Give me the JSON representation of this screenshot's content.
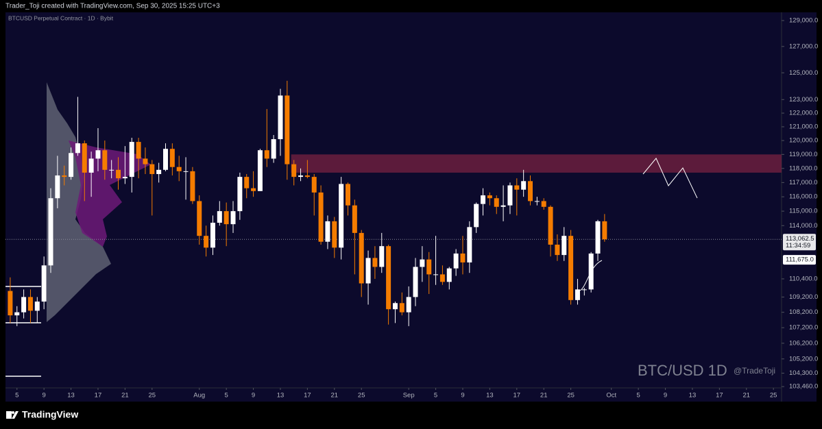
{
  "header": "Trader_Toji created with TradingView.com, Sep 30, 2025 15:25 UTC+3",
  "footer": "TradingView",
  "chart_data": {
    "type": "candlestick",
    "title": "BTCUSD Perpetual Contract · 1D · Bybit",
    "watermark": "BTC/USD 1D",
    "signature": "@TradeToji",
    "log_scale": true,
    "up_color": "#ffffff",
    "down_color": "#f57c00",
    "open": [
      109600,
      108000,
      108200,
      109200,
      108300,
      108900,
      111300,
      115900,
      117500,
      117400,
      119100,
      119800,
      117700,
      118700,
      119300,
      117900,
      117900,
      117300,
      117400,
      119900,
      118700,
      118300,
      117600,
      117900,
      119400,
      118100,
      117800,
      117800,
      115700,
      113300,
      112500,
      114200,
      115000,
      114100,
      115000,
      117400,
      116600,
      116400,
      119300,
      118700,
      120100,
      123300,
      118300,
      117400,
      117500,
      117400,
      116300,
      112900,
      114300,
      112500,
      116900,
      115400,
      113500,
      110100,
      111800,
      111200,
      112600,
      108400,
      108800,
      108200,
      109200,
      111200,
      111700,
      110700,
      110700,
      110200,
      111100,
      112100,
      111500,
      113900,
      115500,
      116100,
      115900,
      115300,
      115400,
      116800,
      116500,
      117100,
      115700,
      115700,
      115300,
      112700,
      112000,
      113300,
      109000,
      109700,
      109700,
      112100,
      114300
    ],
    "high": [
      110500,
      108600,
      109700,
      109700,
      109200,
      111900,
      116600,
      118900,
      118200,
      119500,
      123200,
      120000,
      119200,
      120900,
      120000,
      118600,
      118800,
      119600,
      120200,
      120200,
      119500,
      118600,
      118400,
      119800,
      119800,
      118900,
      118800,
      118100,
      116100,
      114000,
      114700,
      115700,
      115600,
      115700,
      117700,
      117600,
      117800,
      119400,
      122300,
      120400,
      123800,
      124400,
      118600,
      118000,
      118600,
      117600,
      116800,
      114700,
      114600,
      117400,
      117000,
      115800,
      113700,
      112300,
      112600,
      113500,
      112700,
      108900,
      109500,
      109900,
      111800,
      112600,
      112200,
      113300,
      111300,
      111200,
      112400,
      113300,
      114300,
      115600,
      116600,
      116300,
      116100,
      116800,
      117000,
      117300,
      117900,
      117500,
      116000,
      115900,
      115400,
      113400,
      113900,
      113700,
      110400,
      109800,
      112200,
      114400,
      114800
    ],
    "low": [
      107500,
      107300,
      107800,
      107500,
      107500,
      108400,
      110800,
      115200,
      116800,
      117200,
      118900,
      115700,
      116000,
      117800,
      117200,
      117300,
      116500,
      116900,
      116300,
      117300,
      117600,
      114700,
      117000,
      117800,
      117500,
      117100,
      115800,
      115500,
      112700,
      111900,
      112000,
      114000,
      112600,
      113500,
      114400,
      115900,
      116000,
      116400,
      118100,
      118400,
      118900,
      117200,
      116800,
      117100,
      117300,
      114700,
      112700,
      112400,
      111800,
      111700,
      114700,
      110700,
      109200,
      108700,
      110400,
      110800,
      107400,
      107500,
      108000,
      107300,
      108600,
      110200,
      109400,
      110000,
      110000,
      109700,
      110600,
      110700,
      110800,
      113500,
      114700,
      115400,
      114800,
      114300,
      114800,
      114700,
      116000,
      115400,
      115400,
      115100,
      111900,
      111600,
      111600,
      108700,
      108700,
      109300,
      109500,
      111600,
      112900
    ],
    "close": [
      108000,
      108200,
      109200,
      108300,
      108900,
      111300,
      115900,
      117500,
      117400,
      119100,
      119800,
      117700,
      118700,
      119300,
      117900,
      117900,
      117300,
      117400,
      119900,
      118700,
      118300,
      117600,
      117900,
      119400,
      118100,
      117800,
      117800,
      115700,
      113300,
      112500,
      114200,
      115000,
      114100,
      115000,
      117400,
      116600,
      116400,
      119300,
      118700,
      120100,
      123300,
      118300,
      117400,
      117500,
      117400,
      116300,
      112900,
      114300,
      112500,
      116900,
      115400,
      113500,
      110100,
      111800,
      111200,
      112600,
      108400,
      108800,
      108200,
      109200,
      111200,
      111700,
      110700,
      110700,
      110200,
      111100,
      112100,
      111500,
      113900,
      115500,
      116100,
      115900,
      115300,
      115400,
      116800,
      116500,
      117100,
      115700,
      115700,
      115300,
      112700,
      112000,
      113300,
      109000,
      109700,
      109700,
      112100,
      114300,
      113062.5
    ],
    "xlim": [
      -0.7,
      114.2
    ],
    "xticks": [
      {
        "value": 1,
        "label": "5"
      },
      {
        "value": 5,
        "label": "9"
      },
      {
        "value": 9,
        "label": "13"
      },
      {
        "value": 13,
        "label": "17"
      },
      {
        "value": 17,
        "label": "21"
      },
      {
        "value": 21,
        "label": "25"
      },
      {
        "value": 28,
        "label": "Aug"
      },
      {
        "value": 32,
        "label": "5"
      },
      {
        "value": 36,
        "label": "9"
      },
      {
        "value": 40,
        "label": "13"
      },
      {
        "value": 44,
        "label": "17"
      },
      {
        "value": 48,
        "label": "21"
      },
      {
        "value": 52,
        "label": "25"
      },
      {
        "value": 59,
        "label": "Sep"
      },
      {
        "value": 63,
        "label": "5"
      },
      {
        "value": 67,
        "label": "9"
      },
      {
        "value": 71,
        "label": "13"
      },
      {
        "value": 75,
        "label": "17"
      },
      {
        "value": 79,
        "label": "21"
      },
      {
        "value": 83,
        "label": "25"
      },
      {
        "value": 89,
        "label": "Oct"
      },
      {
        "value": 93,
        "label": "5"
      },
      {
        "value": 97,
        "label": "9"
      },
      {
        "value": 101,
        "label": "13"
      },
      {
        "value": 105,
        "label": "17"
      },
      {
        "value": 109,
        "label": "21"
      },
      {
        "value": 113,
        "label": "25"
      }
    ],
    "ylim": [
      103380,
      129640
    ],
    "yticks": [
      {
        "value": 129000,
        "label": "129,000.0"
      },
      {
        "value": 127000,
        "label": "127,000.0"
      },
      {
        "value": 125000,
        "label": "125,000.0"
      },
      {
        "value": 123000,
        "label": "123,000.0"
      },
      {
        "value": 122000,
        "label": "122,000.0"
      },
      {
        "value": 121000,
        "label": "121,000.0"
      },
      {
        "value": 120000,
        "label": "120,000.0"
      },
      {
        "value": 119000,
        "label": "119,000.0"
      },
      {
        "value": 118000,
        "label": "118,000.0"
      },
      {
        "value": 117000,
        "label": "117,000.0"
      },
      {
        "value": 116000,
        "label": "116,000.0"
      },
      {
        "value": 115000,
        "label": "115,000.0"
      },
      {
        "value": 114000,
        "label": "114,000.0"
      },
      {
        "value": 110400,
        "label": "110,400.0"
      },
      {
        "value": 109200,
        "label": "109,200.0"
      },
      {
        "value": 108200,
        "label": "108,200.0"
      },
      {
        "value": 107200,
        "label": "107,200.0"
      },
      {
        "value": 106200,
        "label": "106,200.0"
      },
      {
        "value": 105200,
        "label": "105,200.0"
      },
      {
        "value": 104300,
        "label": "104,300.0"
      },
      {
        "value": 103460,
        "label": "103,460.0"
      }
    ],
    "last_price": {
      "value": 113062.5,
      "label": "113,062.5"
    },
    "countdown": "11:34:59",
    "marker_price": {
      "value": 111675,
      "label": "111,675.0"
    },
    "zone": {
      "low": 117700,
      "high": 119000,
      "color": "#6b1f3e"
    }
  }
}
